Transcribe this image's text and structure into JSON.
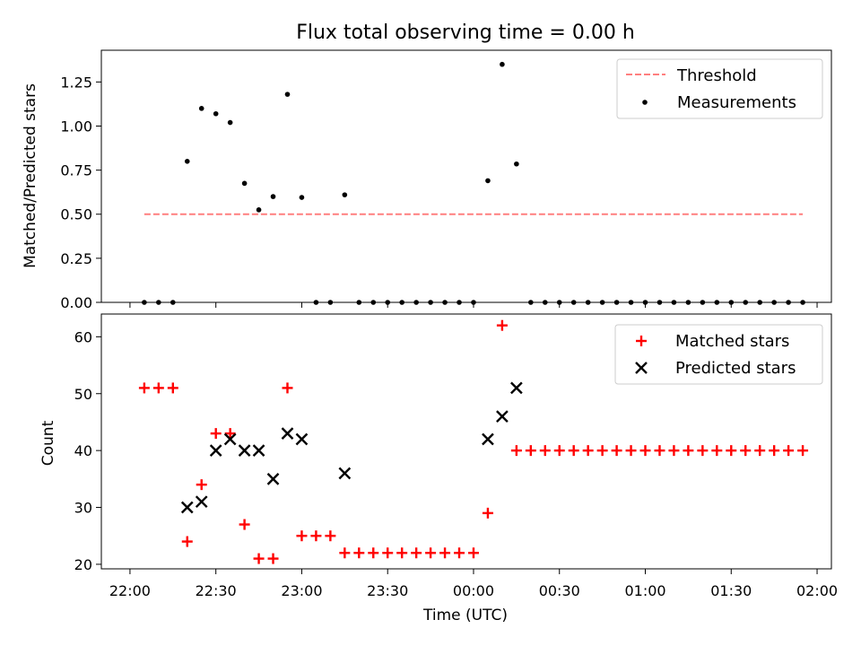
{
  "chart_data": [
    {
      "type": "scatter",
      "title": "Flux total observing time = 0.00 h",
      "xlabel": "",
      "ylabel": "Matched/Predicted stars",
      "x_unit": "minutes after 22:00 UTC",
      "xlim": [
        -10,
        245
      ],
      "ylim": [
        0,
        1.43
      ],
      "yticks": [
        "0.00",
        "0.25",
        "0.50",
        "0.75",
        "1.00",
        "1.25"
      ],
      "legend_position": "upper right",
      "series": [
        {
          "name": "Threshold",
          "kind": "line",
          "style": "dashed",
          "color": "#ff7f7f",
          "x": [
            5,
            235
          ],
          "y": [
            0.5,
            0.5
          ]
        },
        {
          "name": "Measurements",
          "kind": "scatter",
          "marker": "dot",
          "color": "#000000",
          "points": [
            [
              5,
              0
            ],
            [
              10,
              0
            ],
            [
              15,
              0
            ],
            [
              20,
              0.8
            ],
            [
              25,
              1.1
            ],
            [
              30,
              1.07
            ],
            [
              35,
              1.02
            ],
            [
              40,
              0.675
            ],
            [
              45,
              0.525
            ],
            [
              50,
              0.6
            ],
            [
              55,
              1.18
            ],
            [
              60,
              0.595
            ],
            [
              65,
              0
            ],
            [
              70,
              0
            ],
            [
              75,
              0.61
            ],
            [
              80,
              0
            ],
            [
              85,
              0
            ],
            [
              90,
              0
            ],
            [
              95,
              0
            ],
            [
              100,
              0
            ],
            [
              105,
              0
            ],
            [
              110,
              0
            ],
            [
              115,
              0
            ],
            [
              120,
              0
            ],
            [
              125,
              0.69
            ],
            [
              130,
              1.35
            ],
            [
              135,
              0.785
            ],
            [
              140,
              0
            ],
            [
              145,
              0
            ],
            [
              150,
              0
            ],
            [
              155,
              0
            ],
            [
              160,
              0
            ],
            [
              165,
              0
            ],
            [
              170,
              0
            ],
            [
              175,
              0
            ],
            [
              180,
              0
            ],
            [
              185,
              0
            ],
            [
              190,
              0
            ],
            [
              195,
              0
            ],
            [
              200,
              0
            ],
            [
              205,
              0
            ],
            [
              210,
              0
            ],
            [
              215,
              0
            ],
            [
              220,
              0
            ],
            [
              225,
              0
            ],
            [
              230,
              0
            ],
            [
              235,
              0
            ]
          ]
        }
      ]
    },
    {
      "type": "scatter",
      "title": "",
      "xlabel": "Time (UTC)",
      "ylabel": "Count",
      "x_unit": "minutes after 22:00 UTC",
      "xlim": [
        -10,
        245
      ],
      "ylim": [
        19.2,
        64
      ],
      "yticks": [
        "20",
        "30",
        "40",
        "50",
        "60"
      ],
      "xticks": [
        "22:00",
        "22:30",
        "23:00",
        "23:30",
        "00:00",
        "00:30",
        "01:00",
        "01:30",
        "02:00"
      ],
      "xtick_minutes": [
        0,
        30,
        60,
        90,
        120,
        150,
        180,
        210,
        240
      ],
      "legend_position": "upper right",
      "series": [
        {
          "name": "Matched stars",
          "kind": "scatter",
          "marker": "plus",
          "color": "#ff0000",
          "points": [
            [
              5,
              51
            ],
            [
              10,
              51
            ],
            [
              15,
              51
            ],
            [
              20,
              24
            ],
            [
              25,
              34
            ],
            [
              30,
              43
            ],
            [
              35,
              43
            ],
            [
              40,
              27
            ],
            [
              45,
              21
            ],
            [
              50,
              21
            ],
            [
              55,
              51
            ],
            [
              60,
              25
            ],
            [
              65,
              25
            ],
            [
              70,
              25
            ],
            [
              75,
              22
            ],
            [
              80,
              22
            ],
            [
              85,
              22
            ],
            [
              90,
              22
            ],
            [
              95,
              22
            ],
            [
              100,
              22
            ],
            [
              105,
              22
            ],
            [
              110,
              22
            ],
            [
              115,
              22
            ],
            [
              120,
              22
            ],
            [
              125,
              29
            ],
            [
              130,
              62
            ],
            [
              135,
              40
            ],
            [
              140,
              40
            ],
            [
              145,
              40
            ],
            [
              150,
              40
            ],
            [
              155,
              40
            ],
            [
              160,
              40
            ],
            [
              165,
              40
            ],
            [
              170,
              40
            ],
            [
              175,
              40
            ],
            [
              180,
              40
            ],
            [
              185,
              40
            ],
            [
              190,
              40
            ],
            [
              195,
              40
            ],
            [
              200,
              40
            ],
            [
              205,
              40
            ],
            [
              210,
              40
            ],
            [
              215,
              40
            ],
            [
              220,
              40
            ],
            [
              225,
              40
            ],
            [
              230,
              40
            ],
            [
              235,
              40
            ]
          ]
        },
        {
          "name": "Predicted stars",
          "kind": "scatter",
          "marker": "x",
          "color": "#000000",
          "points": [
            [
              20,
              30
            ],
            [
              25,
              31
            ],
            [
              30,
              40
            ],
            [
              35,
              42
            ],
            [
              40,
              40
            ],
            [
              45,
              40
            ],
            [
              50,
              35
            ],
            [
              55,
              43
            ],
            [
              60,
              42
            ],
            [
              75,
              36
            ],
            [
              125,
              42
            ],
            [
              130,
              46
            ],
            [
              135,
              51
            ]
          ]
        }
      ]
    }
  ]
}
